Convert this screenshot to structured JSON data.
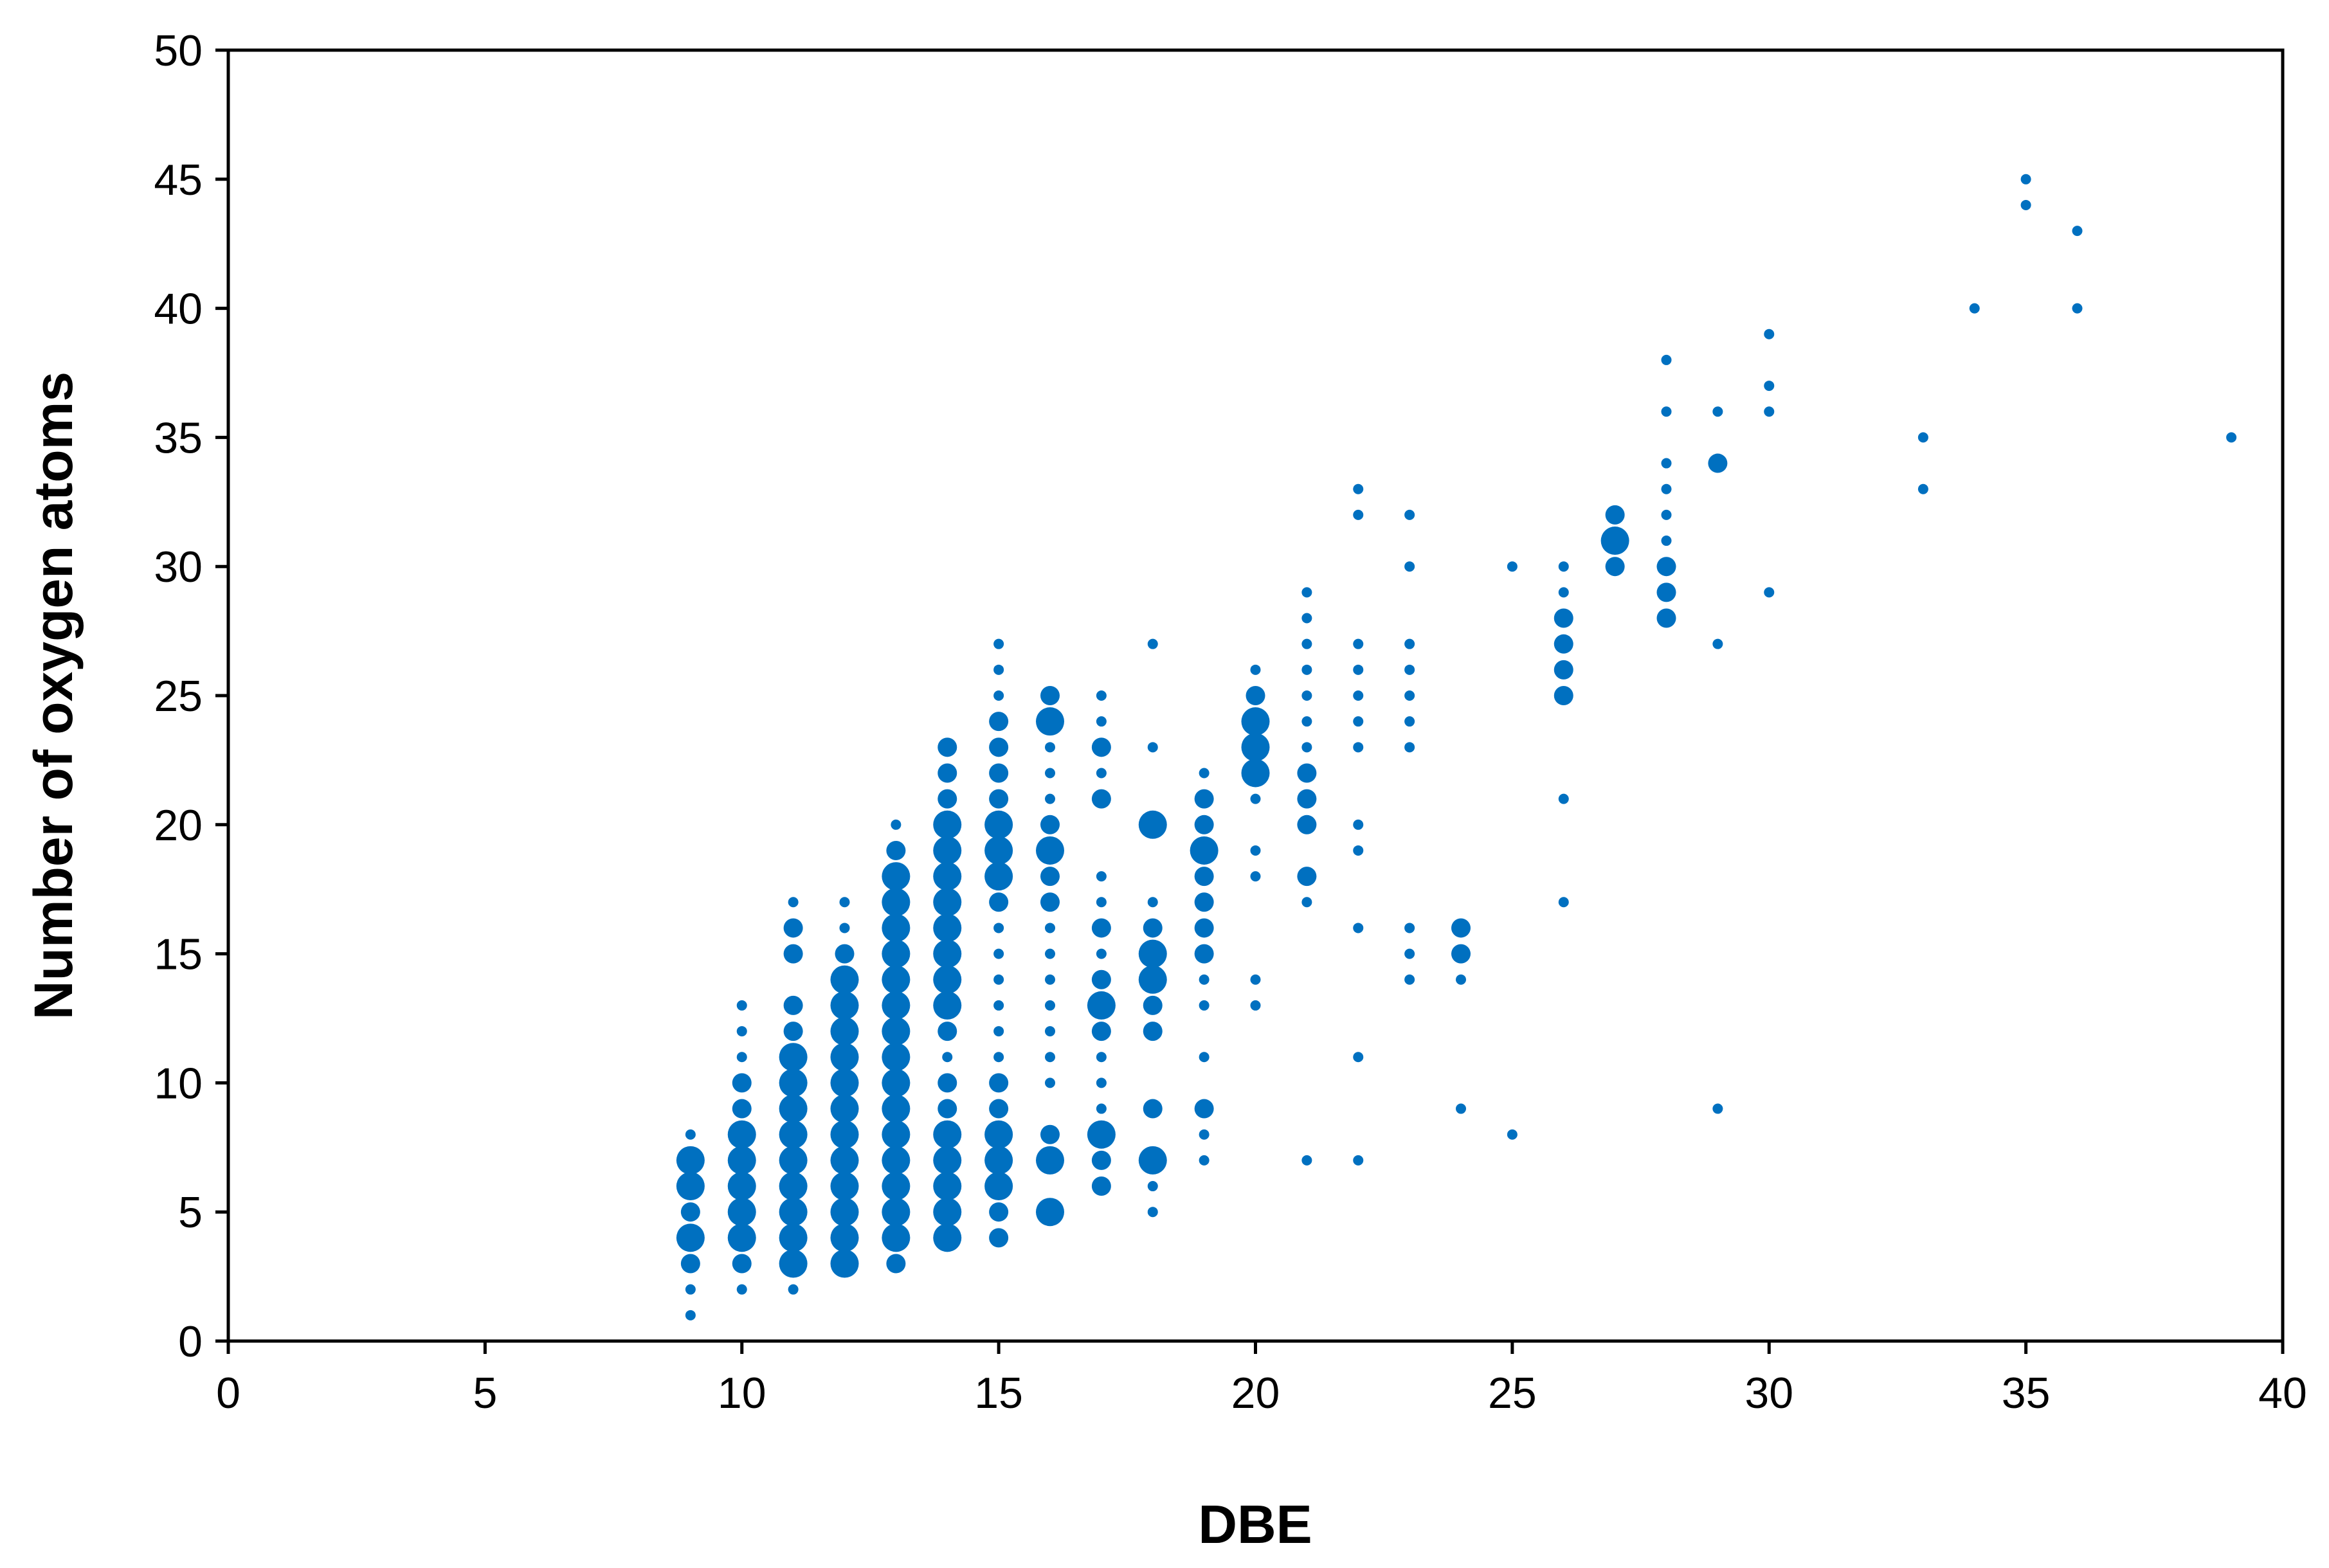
{
  "chart_data": {
    "type": "scatter",
    "title": "",
    "xlabel": "DBE",
    "ylabel": "Number of oxygen atoms",
    "xlim": [
      0,
      40
    ],
    "ylim": [
      0,
      50
    ],
    "x_ticks": [
      0,
      5,
      10,
      15,
      20,
      25,
      30,
      35,
      40
    ],
    "y_ticks": [
      0,
      5,
      10,
      15,
      20,
      25,
      30,
      35,
      40,
      45,
      50
    ],
    "grid": false,
    "legend": "none",
    "marker_color": "#0070C0",
    "size_encoding": "marker size varies with point weight (1=small, 3=large)",
    "points": [
      {
        "x": 9,
        "y": 1,
        "s": 1
      },
      {
        "x": 9,
        "y": 2,
        "s": 1
      },
      {
        "x": 9,
        "y": 3,
        "s": 2
      },
      {
        "x": 9,
        "y": 4,
        "s": 3
      },
      {
        "x": 9,
        "y": 5,
        "s": 2
      },
      {
        "x": 9,
        "y": 6,
        "s": 3
      },
      {
        "x": 9,
        "y": 7,
        "s": 3
      },
      {
        "x": 9,
        "y": 8,
        "s": 1
      },
      {
        "x": 10,
        "y": 2,
        "s": 1
      },
      {
        "x": 10,
        "y": 3,
        "s": 2
      },
      {
        "x": 10,
        "y": 4,
        "s": 3
      },
      {
        "x": 10,
        "y": 5,
        "s": 3
      },
      {
        "x": 10,
        "y": 6,
        "s": 3
      },
      {
        "x": 10,
        "y": 7,
        "s": 3
      },
      {
        "x": 10,
        "y": 8,
        "s": 3
      },
      {
        "x": 10,
        "y": 9,
        "s": 2
      },
      {
        "x": 10,
        "y": 10,
        "s": 2
      },
      {
        "x": 10,
        "y": 11,
        "s": 1
      },
      {
        "x": 10,
        "y": 12,
        "s": 1
      },
      {
        "x": 10,
        "y": 13,
        "s": 1
      },
      {
        "x": 11,
        "y": 2,
        "s": 1
      },
      {
        "x": 11,
        "y": 3,
        "s": 3
      },
      {
        "x": 11,
        "y": 4,
        "s": 3
      },
      {
        "x": 11,
        "y": 5,
        "s": 3
      },
      {
        "x": 11,
        "y": 6,
        "s": 3
      },
      {
        "x": 11,
        "y": 7,
        "s": 3
      },
      {
        "x": 11,
        "y": 8,
        "s": 3
      },
      {
        "x": 11,
        "y": 9,
        "s": 3
      },
      {
        "x": 11,
        "y": 10,
        "s": 3
      },
      {
        "x": 11,
        "y": 11,
        "s": 3
      },
      {
        "x": 11,
        "y": 12,
        "s": 2
      },
      {
        "x": 11,
        "y": 13,
        "s": 2
      },
      {
        "x": 11,
        "y": 15,
        "s": 2
      },
      {
        "x": 11,
        "y": 16,
        "s": 2
      },
      {
        "x": 11,
        "y": 17,
        "s": 1
      },
      {
        "x": 12,
        "y": 3,
        "s": 3
      },
      {
        "x": 12,
        "y": 4,
        "s": 3
      },
      {
        "x": 12,
        "y": 5,
        "s": 3
      },
      {
        "x": 12,
        "y": 6,
        "s": 3
      },
      {
        "x": 12,
        "y": 7,
        "s": 3
      },
      {
        "x": 12,
        "y": 8,
        "s": 3
      },
      {
        "x": 12,
        "y": 9,
        "s": 3
      },
      {
        "x": 12,
        "y": 10,
        "s": 3
      },
      {
        "x": 12,
        "y": 11,
        "s": 3
      },
      {
        "x": 12,
        "y": 12,
        "s": 3
      },
      {
        "x": 12,
        "y": 13,
        "s": 3
      },
      {
        "x": 12,
        "y": 14,
        "s": 3
      },
      {
        "x": 12,
        "y": 15,
        "s": 2
      },
      {
        "x": 12,
        "y": 16,
        "s": 1
      },
      {
        "x": 12,
        "y": 17,
        "s": 1
      },
      {
        "x": 13,
        "y": 3,
        "s": 2
      },
      {
        "x": 13,
        "y": 4,
        "s": 3
      },
      {
        "x": 13,
        "y": 5,
        "s": 3
      },
      {
        "x": 13,
        "y": 6,
        "s": 3
      },
      {
        "x": 13,
        "y": 7,
        "s": 3
      },
      {
        "x": 13,
        "y": 8,
        "s": 3
      },
      {
        "x": 13,
        "y": 9,
        "s": 3
      },
      {
        "x": 13,
        "y": 10,
        "s": 3
      },
      {
        "x": 13,
        "y": 11,
        "s": 3
      },
      {
        "x": 13,
        "y": 12,
        "s": 3
      },
      {
        "x": 13,
        "y": 13,
        "s": 3
      },
      {
        "x": 13,
        "y": 14,
        "s": 3
      },
      {
        "x": 13,
        "y": 15,
        "s": 3
      },
      {
        "x": 13,
        "y": 16,
        "s": 3
      },
      {
        "x": 13,
        "y": 17,
        "s": 3
      },
      {
        "x": 13,
        "y": 18,
        "s": 3
      },
      {
        "x": 13,
        "y": 19,
        "s": 2
      },
      {
        "x": 13,
        "y": 20,
        "s": 1
      },
      {
        "x": 14,
        "y": 4,
        "s": 3
      },
      {
        "x": 14,
        "y": 5,
        "s": 3
      },
      {
        "x": 14,
        "y": 6,
        "s": 3
      },
      {
        "x": 14,
        "y": 7,
        "s": 3
      },
      {
        "x": 14,
        "y": 8,
        "s": 3
      },
      {
        "x": 14,
        "y": 9,
        "s": 2
      },
      {
        "x": 14,
        "y": 10,
        "s": 2
      },
      {
        "x": 14,
        "y": 11,
        "s": 1
      },
      {
        "x": 14,
        "y": 12,
        "s": 2
      },
      {
        "x": 14,
        "y": 13,
        "s": 3
      },
      {
        "x": 14,
        "y": 14,
        "s": 3
      },
      {
        "x": 14,
        "y": 15,
        "s": 3
      },
      {
        "x": 14,
        "y": 16,
        "s": 3
      },
      {
        "x": 14,
        "y": 17,
        "s": 3
      },
      {
        "x": 14,
        "y": 18,
        "s": 3
      },
      {
        "x": 14,
        "y": 19,
        "s": 3
      },
      {
        "x": 14,
        "y": 20,
        "s": 3
      },
      {
        "x": 14,
        "y": 21,
        "s": 2
      },
      {
        "x": 14,
        "y": 22,
        "s": 2
      },
      {
        "x": 14,
        "y": 23,
        "s": 2
      },
      {
        "x": 15,
        "y": 4,
        "s": 2
      },
      {
        "x": 15,
        "y": 5,
        "s": 2
      },
      {
        "x": 15,
        "y": 6,
        "s": 3
      },
      {
        "x": 15,
        "y": 7,
        "s": 3
      },
      {
        "x": 15,
        "y": 8,
        "s": 3
      },
      {
        "x": 15,
        "y": 9,
        "s": 2
      },
      {
        "x": 15,
        "y": 10,
        "s": 2
      },
      {
        "x": 15,
        "y": 11,
        "s": 1
      },
      {
        "x": 15,
        "y": 12,
        "s": 1
      },
      {
        "x": 15,
        "y": 13,
        "s": 1
      },
      {
        "x": 15,
        "y": 14,
        "s": 1
      },
      {
        "x": 15,
        "y": 15,
        "s": 1
      },
      {
        "x": 15,
        "y": 16,
        "s": 1
      },
      {
        "x": 15,
        "y": 17,
        "s": 2
      },
      {
        "x": 15,
        "y": 18,
        "s": 3
      },
      {
        "x": 15,
        "y": 19,
        "s": 3
      },
      {
        "x": 15,
        "y": 20,
        "s": 3
      },
      {
        "x": 15,
        "y": 21,
        "s": 2
      },
      {
        "x": 15,
        "y": 22,
        "s": 2
      },
      {
        "x": 15,
        "y": 23,
        "s": 2
      },
      {
        "x": 15,
        "y": 24,
        "s": 2
      },
      {
        "x": 15,
        "y": 25,
        "s": 1
      },
      {
        "x": 15,
        "y": 26,
        "s": 1
      },
      {
        "x": 15,
        "y": 27,
        "s": 1
      },
      {
        "x": 16,
        "y": 5,
        "s": 3
      },
      {
        "x": 16,
        "y": 7,
        "s": 3
      },
      {
        "x": 16,
        "y": 8,
        "s": 2
      },
      {
        "x": 16,
        "y": 10,
        "s": 1
      },
      {
        "x": 16,
        "y": 11,
        "s": 1
      },
      {
        "x": 16,
        "y": 12,
        "s": 1
      },
      {
        "x": 16,
        "y": 13,
        "s": 1
      },
      {
        "x": 16,
        "y": 14,
        "s": 1
      },
      {
        "x": 16,
        "y": 15,
        "s": 1
      },
      {
        "x": 16,
        "y": 16,
        "s": 1
      },
      {
        "x": 16,
        "y": 17,
        "s": 2
      },
      {
        "x": 16,
        "y": 18,
        "s": 2
      },
      {
        "x": 16,
        "y": 19,
        "s": 3
      },
      {
        "x": 16,
        "y": 20,
        "s": 2
      },
      {
        "x": 16,
        "y": 21,
        "s": 1
      },
      {
        "x": 16,
        "y": 22,
        "s": 1
      },
      {
        "x": 16,
        "y": 23,
        "s": 1
      },
      {
        "x": 16,
        "y": 24,
        "s": 3
      },
      {
        "x": 16,
        "y": 25,
        "s": 2
      },
      {
        "x": 17,
        "y": 6,
        "s": 2
      },
      {
        "x": 17,
        "y": 7,
        "s": 2
      },
      {
        "x": 17,
        "y": 8,
        "s": 3
      },
      {
        "x": 17,
        "y": 9,
        "s": 1
      },
      {
        "x": 17,
        "y": 10,
        "s": 1
      },
      {
        "x": 17,
        "y": 11,
        "s": 1
      },
      {
        "x": 17,
        "y": 12,
        "s": 2
      },
      {
        "x": 17,
        "y": 13,
        "s": 3
      },
      {
        "x": 17,
        "y": 14,
        "s": 2
      },
      {
        "x": 17,
        "y": 15,
        "s": 1
      },
      {
        "x": 17,
        "y": 16,
        "s": 2
      },
      {
        "x": 17,
        "y": 17,
        "s": 1
      },
      {
        "x": 17,
        "y": 18,
        "s": 1
      },
      {
        "x": 17,
        "y": 21,
        "s": 2
      },
      {
        "x": 17,
        "y": 22,
        "s": 1
      },
      {
        "x": 17,
        "y": 23,
        "s": 2
      },
      {
        "x": 17,
        "y": 24,
        "s": 1
      },
      {
        "x": 17,
        "y": 25,
        "s": 1
      },
      {
        "x": 18,
        "y": 5,
        "s": 1
      },
      {
        "x": 18,
        "y": 6,
        "s": 1
      },
      {
        "x": 18,
        "y": 7,
        "s": 3
      },
      {
        "x": 18,
        "y": 9,
        "s": 2
      },
      {
        "x": 18,
        "y": 12,
        "s": 2
      },
      {
        "x": 18,
        "y": 13,
        "s": 2
      },
      {
        "x": 18,
        "y": 14,
        "s": 3
      },
      {
        "x": 18,
        "y": 15,
        "s": 3
      },
      {
        "x": 18,
        "y": 16,
        "s": 2
      },
      {
        "x": 18,
        "y": 17,
        "s": 1
      },
      {
        "x": 18,
        "y": 20,
        "s": 3
      },
      {
        "x": 18,
        "y": 23,
        "s": 1
      },
      {
        "x": 18,
        "y": 27,
        "s": 1
      },
      {
        "x": 19,
        "y": 7,
        "s": 1
      },
      {
        "x": 19,
        "y": 8,
        "s": 1
      },
      {
        "x": 19,
        "y": 9,
        "s": 2
      },
      {
        "x": 19,
        "y": 11,
        "s": 1
      },
      {
        "x": 19,
        "y": 13,
        "s": 1
      },
      {
        "x": 19,
        "y": 14,
        "s": 1
      },
      {
        "x": 19,
        "y": 15,
        "s": 2
      },
      {
        "x": 19,
        "y": 16,
        "s": 2
      },
      {
        "x": 19,
        "y": 17,
        "s": 2
      },
      {
        "x": 19,
        "y": 18,
        "s": 2
      },
      {
        "x": 19,
        "y": 19,
        "s": 3
      },
      {
        "x": 19,
        "y": 20,
        "s": 2
      },
      {
        "x": 19,
        "y": 21,
        "s": 2
      },
      {
        "x": 19,
        "y": 22,
        "s": 1
      },
      {
        "x": 20,
        "y": 13,
        "s": 1
      },
      {
        "x": 20,
        "y": 14,
        "s": 1
      },
      {
        "x": 20,
        "y": 18,
        "s": 1
      },
      {
        "x": 20,
        "y": 19,
        "s": 1
      },
      {
        "x": 20,
        "y": 21,
        "s": 1
      },
      {
        "x": 20,
        "y": 22,
        "s": 3
      },
      {
        "x": 20,
        "y": 23,
        "s": 3
      },
      {
        "x": 20,
        "y": 24,
        "s": 3
      },
      {
        "x": 20,
        "y": 25,
        "s": 2
      },
      {
        "x": 20,
        "y": 26,
        "s": 1
      },
      {
        "x": 21,
        "y": 7,
        "s": 1
      },
      {
        "x": 21,
        "y": 17,
        "s": 1
      },
      {
        "x": 21,
        "y": 18,
        "s": 2
      },
      {
        "x": 21,
        "y": 20,
        "s": 2
      },
      {
        "x": 21,
        "y": 21,
        "s": 2
      },
      {
        "x": 21,
        "y": 22,
        "s": 2
      },
      {
        "x": 21,
        "y": 23,
        "s": 1
      },
      {
        "x": 21,
        "y": 24,
        "s": 1
      },
      {
        "x": 21,
        "y": 25,
        "s": 1
      },
      {
        "x": 21,
        "y": 26,
        "s": 1
      },
      {
        "x": 21,
        "y": 27,
        "s": 1
      },
      {
        "x": 21,
        "y": 28,
        "s": 1
      },
      {
        "x": 21,
        "y": 29,
        "s": 1
      },
      {
        "x": 22,
        "y": 7,
        "s": 1
      },
      {
        "x": 22,
        "y": 11,
        "s": 1
      },
      {
        "x": 22,
        "y": 16,
        "s": 1
      },
      {
        "x": 22,
        "y": 19,
        "s": 1
      },
      {
        "x": 22,
        "y": 20,
        "s": 1
      },
      {
        "x": 22,
        "y": 23,
        "s": 1
      },
      {
        "x": 22,
        "y": 24,
        "s": 1
      },
      {
        "x": 22,
        "y": 25,
        "s": 1
      },
      {
        "x": 22,
        "y": 26,
        "s": 1
      },
      {
        "x": 22,
        "y": 27,
        "s": 1
      },
      {
        "x": 22,
        "y": 32,
        "s": 1
      },
      {
        "x": 22,
        "y": 33,
        "s": 1
      },
      {
        "x": 23,
        "y": 14,
        "s": 1
      },
      {
        "x": 23,
        "y": 15,
        "s": 1
      },
      {
        "x": 23,
        "y": 16,
        "s": 1
      },
      {
        "x": 23,
        "y": 23,
        "s": 1
      },
      {
        "x": 23,
        "y": 24,
        "s": 1
      },
      {
        "x": 23,
        "y": 25,
        "s": 1
      },
      {
        "x": 23,
        "y": 26,
        "s": 1
      },
      {
        "x": 23,
        "y": 27,
        "s": 1
      },
      {
        "x": 23,
        "y": 30,
        "s": 1
      },
      {
        "x": 23,
        "y": 32,
        "s": 1
      },
      {
        "x": 24,
        "y": 9,
        "s": 1
      },
      {
        "x": 24,
        "y": 14,
        "s": 1
      },
      {
        "x": 24,
        "y": 15,
        "s": 2
      },
      {
        "x": 24,
        "y": 16,
        "s": 2
      },
      {
        "x": 25,
        "y": 8,
        "s": 1
      },
      {
        "x": 25,
        "y": 30,
        "s": 1
      },
      {
        "x": 26,
        "y": 17,
        "s": 1
      },
      {
        "x": 26,
        "y": 21,
        "s": 1
      },
      {
        "x": 26,
        "y": 25,
        "s": 2
      },
      {
        "x": 26,
        "y": 26,
        "s": 2
      },
      {
        "x": 26,
        "y": 27,
        "s": 2
      },
      {
        "x": 26,
        "y": 28,
        "s": 2
      },
      {
        "x": 26,
        "y": 29,
        "s": 1
      },
      {
        "x": 26,
        "y": 30,
        "s": 1
      },
      {
        "x": 27,
        "y": 30,
        "s": 2
      },
      {
        "x": 27,
        "y": 31,
        "s": 3
      },
      {
        "x": 27,
        "y": 32,
        "s": 2
      },
      {
        "x": 28,
        "y": 28,
        "s": 2
      },
      {
        "x": 28,
        "y": 29,
        "s": 2
      },
      {
        "x": 28,
        "y": 30,
        "s": 2
      },
      {
        "x": 28,
        "y": 31,
        "s": 1
      },
      {
        "x": 28,
        "y": 32,
        "s": 1
      },
      {
        "x": 28,
        "y": 33,
        "s": 1
      },
      {
        "x": 28,
        "y": 34,
        "s": 1
      },
      {
        "x": 28,
        "y": 36,
        "s": 1
      },
      {
        "x": 28,
        "y": 38,
        "s": 1
      },
      {
        "x": 29,
        "y": 9,
        "s": 1
      },
      {
        "x": 29,
        "y": 27,
        "s": 1
      },
      {
        "x": 29,
        "y": 34,
        "s": 2
      },
      {
        "x": 29,
        "y": 36,
        "s": 1
      },
      {
        "x": 30,
        "y": 29,
        "s": 1
      },
      {
        "x": 30,
        "y": 36,
        "s": 1
      },
      {
        "x": 30,
        "y": 37,
        "s": 1
      },
      {
        "x": 30,
        "y": 39,
        "s": 1
      },
      {
        "x": 33,
        "y": 33,
        "s": 1
      },
      {
        "x": 33,
        "y": 35,
        "s": 1
      },
      {
        "x": 34,
        "y": 40,
        "s": 1
      },
      {
        "x": 35,
        "y": 44,
        "s": 1
      },
      {
        "x": 35,
        "y": 45,
        "s": 1
      },
      {
        "x": 36,
        "y": 40,
        "s": 1
      },
      {
        "x": 36,
        "y": 43,
        "s": 1
      },
      {
        "x": 39,
        "y": 35,
        "s": 1
      }
    ]
  }
}
